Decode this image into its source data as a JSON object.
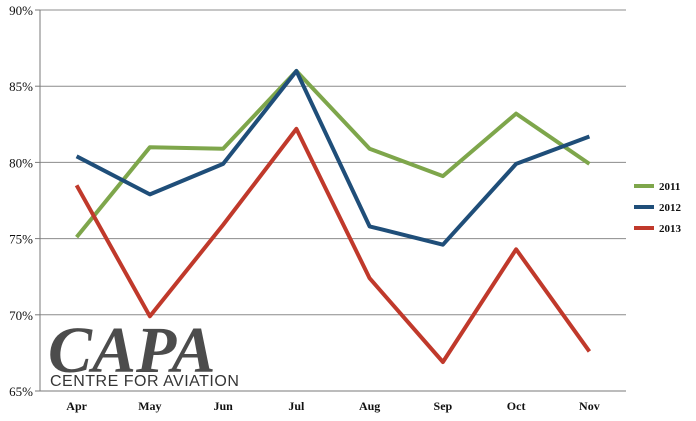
{
  "chart_data": {
    "type": "line",
    "categories": [
      "Apr",
      "May",
      "Jun",
      "Jul",
      "Aug",
      "Sep",
      "Oct",
      "Nov"
    ],
    "series": [
      {
        "name": "2011",
        "color": "#7ea64b",
        "values": [
          75.1,
          81.0,
          80.9,
          86.0,
          80.9,
          79.1,
          83.2,
          79.9
        ]
      },
      {
        "name": "2012",
        "color": "#1f4e79",
        "values": [
          80.4,
          77.9,
          79.9,
          86.0,
          75.8,
          74.6,
          79.9,
          81.7
        ]
      },
      {
        "name": "2013",
        "color": "#c0392b",
        "values": [
          78.5,
          69.9,
          75.9,
          82.2,
          72.4,
          66.9,
          74.3,
          67.6
        ]
      }
    ],
    "y_ticks": [
      "65%",
      "70%",
      "75%",
      "80%",
      "85%",
      "90%"
    ],
    "ylim": [
      65,
      90
    ],
    "grid": true,
    "legend_position": "right"
  },
  "watermark": {
    "logo_text": "CAPA",
    "subtitle": "CENTRE FOR AVIATION",
    "color": "#9ab3d1"
  }
}
